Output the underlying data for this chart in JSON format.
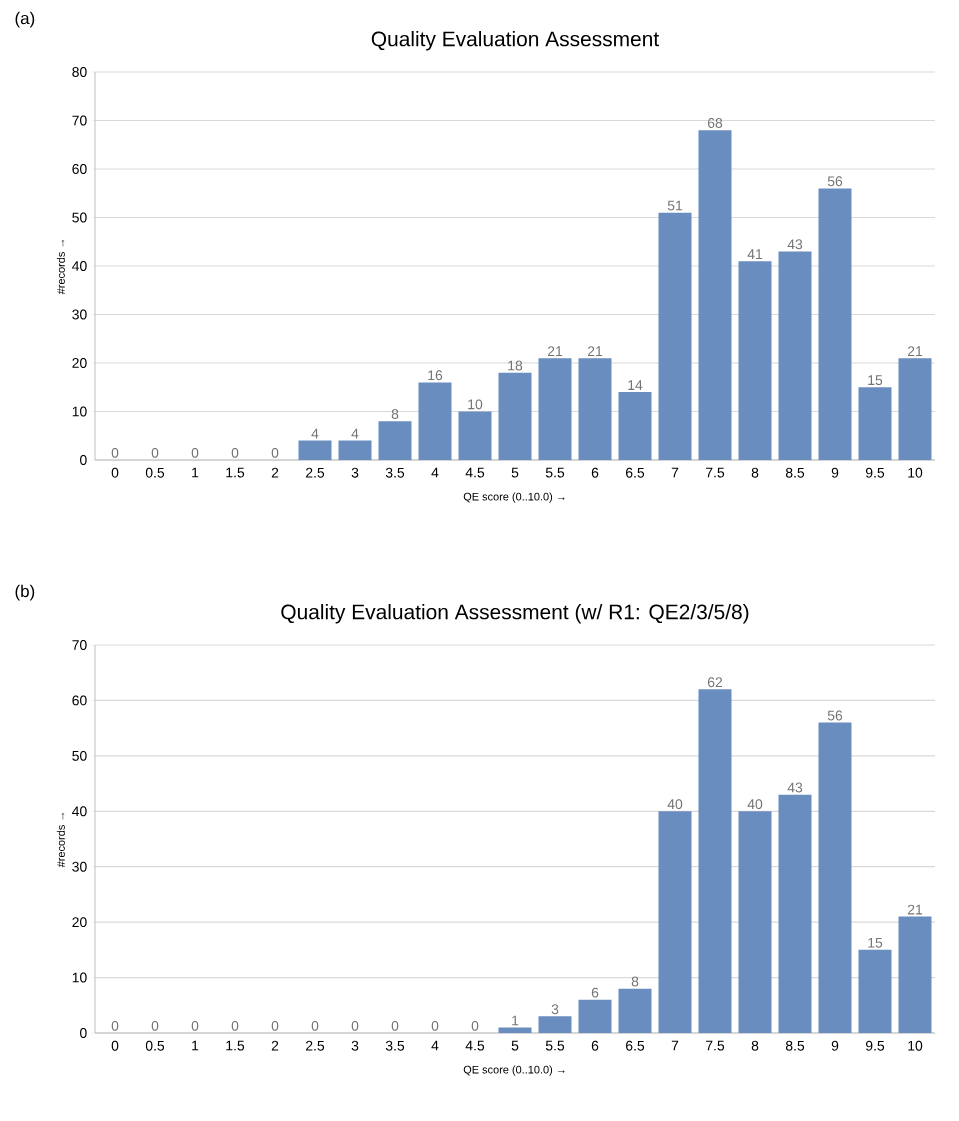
{
  "chart_data": [
    {
      "type": "bar",
      "title": "Quality Evaluation Assessment",
      "xlabel": "QE score (0..10.0) →",
      "ylabel": "#records →",
      "annotations": [
        "(a)"
      ],
      "categories": [
        "0",
        "0.5",
        "1",
        "1.5",
        "2",
        "2.5",
        "3",
        "3.5",
        "4",
        "4.5",
        "5",
        "5.5",
        "6",
        "6.5",
        "7",
        "7.5",
        "8",
        "8.5",
        "9",
        "9.5",
        "10"
      ],
      "values": [
        0,
        0,
        0,
        0,
        0,
        4,
        4,
        8,
        16,
        10,
        18,
        21,
        21,
        14,
        51,
        68,
        41,
        43,
        56,
        15,
        21
      ],
      "color": "#6a8dbf",
      "ylim": [
        0,
        80
      ],
      "yticks": [
        0,
        10,
        20,
        30,
        40,
        50,
        60,
        70,
        80
      ],
      "grid": "y",
      "data_labels": true
    },
    {
      "type": "bar",
      "title": "Quality Evaluation Assessment (w/ R1: QE2/3/5/8)",
      "xlabel": "QE score (0..10.0) →",
      "ylabel": "#records →",
      "annotations": [
        "(b)"
      ],
      "categories": [
        "0",
        "0.5",
        "1",
        "1.5",
        "2",
        "2.5",
        "3",
        "3.5",
        "4",
        "4.5",
        "5",
        "5.5",
        "6",
        "6.5",
        "7",
        "7.5",
        "8",
        "8.5",
        "9",
        "9.5",
        "10"
      ],
      "values": [
        0,
        0,
        0,
        0,
        0,
        0,
        0,
        0,
        0,
        0,
        1,
        3,
        6,
        8,
        40,
        62,
        40,
        43,
        56,
        15,
        21
      ],
      "color": "#6a8dbf",
      "ylim": [
        0,
        70
      ],
      "yticks": [
        0,
        10,
        20,
        30,
        40,
        50,
        60,
        70
      ],
      "grid": "y",
      "data_labels": true
    }
  ]
}
